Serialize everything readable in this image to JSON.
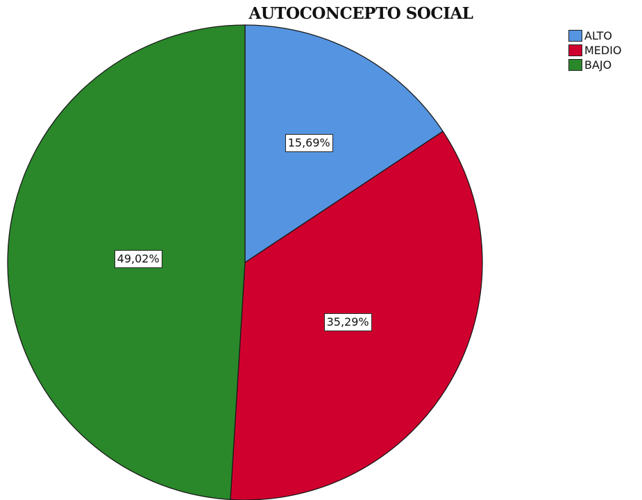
{
  "chart_data": {
    "type": "pie",
    "title": "AUTOCONCEPTO SOCIAL",
    "categories": [
      "ALTO",
      "MEDIO",
      "BAJO"
    ],
    "values": [
      15.69,
      35.29,
      49.02
    ],
    "data_labels": [
      "15,69%",
      "35,29%",
      "49,02%"
    ],
    "colors": [
      "#5594e0",
      "#d0002e",
      "#2a882a"
    ],
    "start_angle": "12 o'clock",
    "direction": "clockwise",
    "legend_position": "top-right"
  }
}
